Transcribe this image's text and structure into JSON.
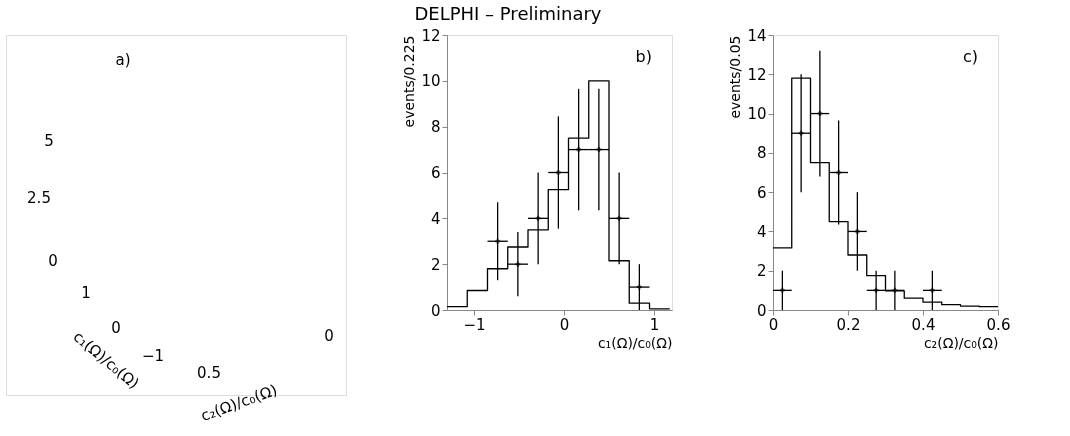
{
  "chart_data": [
    {
      "type": "other",
      "title": "DELPHI – Preliminary",
      "annotations": [
        "a)",
        "5",
        "2.5",
        "0",
        "1",
        "0",
        "−1",
        "0.5",
        "0",
        "c₁(Ω)/c₀(Ω)",
        "c₂(Ω)/c₀(Ω)"
      ]
    },
    {
      "type": "histogram",
      "xlabel": "c₁(Ω)/c₀(Ω)",
      "ylabel": "events/0.225",
      "annotations": [
        "b)"
      ],
      "bins": [
        -1.3,
        -1.075,
        -0.85,
        -0.625,
        -0.4,
        -0.175,
        0.05,
        0.275,
        0.5,
        0.725,
        0.95,
        1.175
      ],
      "xlim": [
        -1.3,
        1.2
      ],
      "xticks": [
        -1,
        0,
        1
      ],
      "ylim": [
        0,
        12
      ],
      "yticks": [
        0,
        2,
        4,
        6,
        8,
        10,
        12
      ],
      "grid": false,
      "series": [
        {
          "type": "histogram",
          "color": "#000000",
          "values": [
            0.15,
            0.85,
            1.8,
            2.75,
            3.5,
            5.25,
            7.5,
            10,
            2.15,
            0.3,
            0.05
          ]
        },
        {
          "type": "scatter",
          "color": "#000000",
          "marker": "cross",
          "x": [
            -0.7375,
            -0.5125,
            -0.2875,
            -0.0625,
            0.1625,
            0.3875,
            0.6125,
            0.8375
          ],
          "values": [
            3,
            2,
            4,
            6,
            7,
            7,
            4,
            1
          ],
          "errors": [
            [
              1.3,
              4.7
            ],
            [
              0.6,
              3.4
            ],
            [
              2,
              6
            ],
            [
              3.55,
              8.45
            ],
            [
              4.35,
              9.65
            ],
            [
              4.35,
              9.65
            ],
            [
              2,
              6
            ],
            [
              0,
              2
            ]
          ],
          "xerrors": [
            0.1125,
            0.1125,
            0.1125,
            0.1125,
            0.1125,
            0.1125,
            0.1125,
            0.1125
          ]
        }
      ]
    },
    {
      "type": "histogram",
      "xlabel": "c₂(Ω)/c₀(Ω)",
      "ylabel": "events/0.05",
      "annotations": [
        "c)"
      ],
      "bins": [
        0,
        0.05,
        0.1,
        0.15,
        0.2,
        0.25,
        0.3,
        0.35,
        0.4,
        0.45,
        0.5,
        0.55,
        0.6
      ],
      "xlim": [
        0,
        0.6
      ],
      "xticks": [
        0,
        0.2,
        0.4,
        0.6
      ],
      "ylim": [
        0,
        14
      ],
      "yticks": [
        0,
        2,
        4,
        6,
        8,
        10,
        12,
        14
      ],
      "grid": false,
      "series": [
        {
          "type": "histogram",
          "color": "#000000",
          "values": [
            3.16,
            11.8,
            7.5,
            4.5,
            2.8,
            1.75,
            0.97,
            0.6,
            0.4,
            0.27,
            0.2,
            0.17
          ]
        },
        {
          "type": "scatter",
          "color": "#000000",
          "marker": "cross",
          "x": [
            0.025,
            0.075,
            0.125,
            0.175,
            0.225,
            0.275,
            0.325,
            0.425
          ],
          "values": [
            1,
            9,
            10,
            7,
            4,
            1,
            1,
            1
          ],
          "errors": [
            [
              0,
              2
            ],
            [
              6,
              12
            ],
            [
              6.8,
              13.2
            ],
            [
              4.35,
              9.65
            ],
            [
              2,
              6
            ],
            [
              0,
              2
            ],
            [
              0,
              2
            ],
            [
              0,
              2
            ]
          ],
          "xerrors": [
            0.025,
            0.025,
            0.025,
            0.025,
            0.025,
            0.025,
            0.025,
            0.025
          ]
        }
      ]
    }
  ]
}
